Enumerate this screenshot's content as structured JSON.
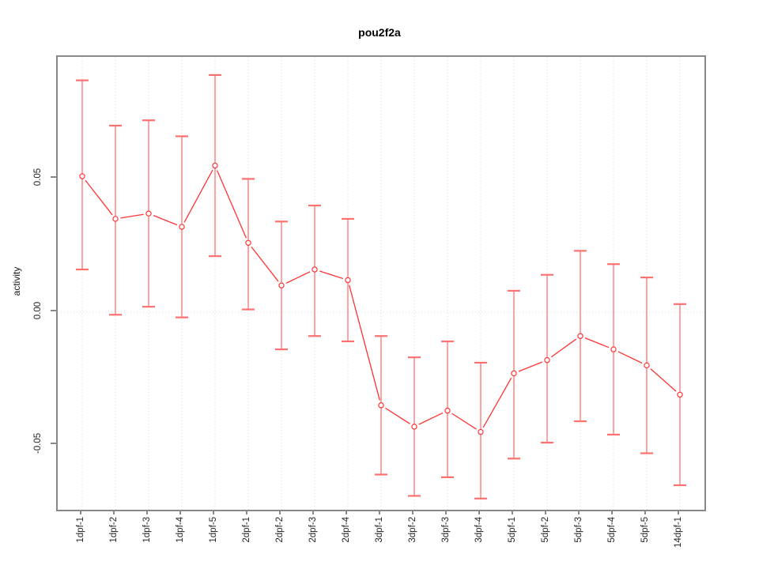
{
  "chart_data": {
    "type": "line",
    "title": "pou2f2a",
    "xlabel": "",
    "ylabel": "activity",
    "point_style": "open-circle",
    "legend": "none",
    "grid": "vertical dotted gridlines per category; dotted horizontal line at y=0",
    "categories": [
      "1dpf-1",
      "1dpf-2",
      "1dpf-3",
      "1dpf-4",
      "1dpf-5",
      "2dpf-1",
      "2dpf-2",
      "2dpf-3",
      "2dpf-4",
      "3dpf-1",
      "3dpf-2",
      "3dpf-3",
      "3dpf-4",
      "5dpf-1",
      "5dpf-2",
      "5dpf-3",
      "5dpf-4",
      "5dpf-5",
      "14dpf-1"
    ],
    "series": [
      {
        "name": "activity",
        "values": [
          0.051,
          0.035,
          0.037,
          0.032,
          0.055,
          0.026,
          0.01,
          0.016,
          0.012,
          -0.035,
          -0.043,
          -0.037,
          -0.045,
          -0.023,
          -0.018,
          -0.009,
          -0.014,
          -0.02,
          -0.031
        ],
        "error_upper": [
          0.087,
          0.07,
          0.072,
          0.066,
          0.089,
          0.05,
          0.034,
          0.04,
          0.035,
          -0.009,
          -0.017,
          -0.011,
          -0.019,
          0.008,
          0.014,
          0.023,
          0.018,
          0.013,
          0.003
        ],
        "error_lower": [
          0.016,
          -0.001,
          0.002,
          -0.002,
          0.021,
          0.001,
          -0.014,
          -0.009,
          -0.011,
          -0.061,
          -0.069,
          -0.062,
          -0.07,
          -0.055,
          -0.049,
          -0.041,
          -0.046,
          -0.053,
          -0.065
        ]
      }
    ],
    "yticks": [
      0.05,
      0.0,
      -0.05
    ],
    "ytick_labels": [
      "0.05",
      "0.00",
      "-0.05"
    ],
    "ylim": [
      -0.0742,
      0.0958
    ],
    "colors": {
      "line": "#ff3333",
      "point": "#ff3333",
      "error_bar": "#ff8c8c",
      "error_cap": "#ff7070",
      "grid": "#dcdcdc",
      "zero_line": "#d4d4d4",
      "box": "#888888",
      "tick": "#888888",
      "tick_label": "#262626",
      "title": "#000000"
    }
  }
}
